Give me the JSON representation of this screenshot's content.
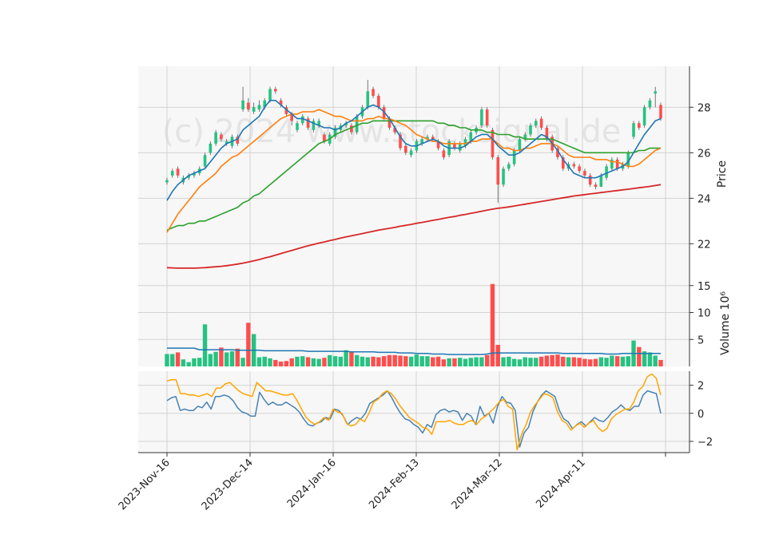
{
  "watermark": "(c) 2024 www.stocksignal.de",
  "colors": {
    "up": "#26c281",
    "down": "#ff4d4d",
    "ma_fast": "#1f77b4",
    "ma_mid": "#ff7f0e",
    "ma_slow": "#2ca02c",
    "ma_long": "#d62728",
    "volume_ma": "#1f77b4",
    "osc_a": "#4682b4",
    "osc_b": "#ffa500",
    "panel_bg": "#f7f7f7",
    "grid": "#d3d3d3"
  },
  "chart_data": [
    {
      "panel": "price",
      "type": "candlestick",
      "ylabel": "Price",
      "ylim": [
        20.4,
        29.8
      ],
      "yticks": [
        "22",
        "24",
        "26",
        "28"
      ],
      "x_tick_labels": [
        "2023-Nov-16",
        "2023-Dec-14",
        "2024-Jan-16",
        "2024-Feb-13",
        "2024-Mar-12",
        "2024-Apr-11"
      ],
      "close": [
        24.8,
        25.2,
        25.0,
        24.9,
        25.0,
        25.1,
        25.3,
        25.9,
        26.4,
        26.9,
        26.6,
        26.5,
        26.7,
        26.4,
        28.3,
        27.9,
        28.0,
        28.1,
        28.3,
        28.8,
        28.7,
        28.1,
        27.7,
        27.4,
        27.3,
        27.6,
        27.1,
        27.4,
        27.4,
        26.5,
        26.8,
        27.1,
        27.2,
        27.3,
        26.9,
        27.6,
        28.0,
        28.7,
        28.5,
        28.0,
        27.5,
        27.1,
        26.9,
        26.2,
        26.0,
        26.1,
        26.5,
        26.6,
        26.7,
        26.6,
        26.2,
        25.8,
        26.5,
        26.2,
        26.4,
        26.6,
        26.9,
        27.1,
        27.9,
        27.2,
        25.8,
        24.6,
        25.3,
        25.5,
        26.1,
        26.6,
        26.8,
        27.2,
        27.4,
        27.1,
        26.6,
        26.1,
        25.8,
        25.3,
        25.5,
        25.4,
        25.2,
        25.0,
        24.6,
        24.5,
        25.0,
        25.4,
        25.7,
        25.3,
        25.5,
        26.0,
        27.3,
        27.1,
        28.0,
        28.3,
        28.7,
        27.5
      ],
      "open": [
        24.7,
        25.0,
        25.3,
        24.7,
        24.9,
        25.0,
        25.1,
        25.4,
        26.0,
        26.4,
        26.8,
        26.4,
        26.3,
        26.7,
        27.9,
        28.2,
        27.8,
        27.9,
        28.0,
        28.3,
        28.8,
        28.3,
        28.0,
        27.7,
        27.0,
        27.3,
        27.5,
        27.0,
        27.2,
        26.8,
        26.4,
        26.7,
        27.0,
        27.2,
        27.2,
        26.9,
        27.6,
        28.0,
        28.8,
        28.5,
        28.0,
        27.5,
        27.1,
        26.8,
        26.3,
        25.9,
        26.1,
        26.4,
        26.6,
        26.7,
        26.5,
        26.1,
        25.9,
        26.4,
        26.1,
        26.3,
        26.5,
        26.9,
        27.2,
        27.9,
        27.0,
        25.8,
        24.6,
        25.3,
        25.5,
        26.1,
        26.6,
        26.8,
        27.2,
        27.5,
        27.1,
        26.7,
        26.2,
        25.8,
        25.3,
        25.5,
        25.4,
        25.2,
        25.0,
        24.6,
        24.5,
        24.9,
        25.3,
        25.7,
        25.3,
        25.4,
        26.7,
        27.3,
        27.2,
        28.0,
        28.6,
        28.1
      ],
      "high": [
        24.9,
        25.3,
        25.4,
        25.0,
        25.1,
        25.2,
        25.4,
        26.0,
        26.5,
        27.0,
        26.9,
        26.6,
        26.8,
        26.8,
        28.9,
        28.4,
        28.2,
        28.3,
        28.4,
        28.9,
        28.9,
        28.4,
        28.1,
        27.8,
        27.4,
        27.7,
        27.6,
        27.5,
        27.5,
        26.9,
        26.9,
        27.2,
        27.3,
        27.4,
        27.3,
        27.7,
        28.1,
        29.2,
        28.9,
        28.6,
        28.1,
        27.6,
        27.2,
        26.9,
        26.4,
        26.2,
        26.6,
        26.7,
        26.8,
        26.8,
        26.6,
        26.2,
        26.6,
        26.5,
        26.5,
        26.7,
        27.0,
        27.2,
        28.0,
        28.0,
        27.1,
        25.9,
        25.4,
        25.6,
        26.2,
        26.7,
        26.9,
        27.3,
        27.5,
        27.6,
        27.2,
        26.8,
        26.3,
        25.9,
        25.6,
        25.6,
        25.5,
        25.3,
        25.1,
        24.7,
        25.1,
        25.5,
        25.8,
        25.8,
        25.6,
        26.1,
        27.4,
        27.4,
        28.1,
        28.4,
        28.9,
        28.2
      ],
      "low": [
        24.6,
        24.9,
        24.9,
        24.6,
        24.8,
        24.9,
        25.0,
        25.3,
        25.9,
        26.3,
        26.5,
        26.3,
        26.2,
        26.3,
        27.8,
        27.8,
        27.7,
        27.8,
        27.9,
        28.2,
        28.6,
        28.0,
        27.6,
        27.2,
        26.9,
        27.2,
        27.0,
        26.9,
        27.1,
        26.4,
        26.3,
        26.6,
        26.9,
        27.1,
        26.8,
        26.8,
        27.5,
        27.9,
        28.4,
        27.9,
        27.4,
        27.0,
        26.8,
        26.1,
        25.9,
        25.8,
        26.0,
        26.3,
        26.5,
        26.5,
        26.1,
        25.7,
        25.8,
        26.1,
        26.0,
        26.2,
        26.4,
        26.8,
        27.1,
        27.1,
        25.7,
        23.8,
        24.5,
        25.2,
        25.4,
        26.0,
        26.5,
        26.7,
        27.1,
        27.0,
        26.5,
        26.0,
        25.7,
        25.2,
        25.2,
        25.3,
        25.1,
        24.9,
        24.5,
        24.4,
        24.5,
        24.8,
        25.2,
        25.2,
        25.2,
        25.3,
        26.6,
        27.0,
        27.1,
        27.9,
        28.0,
        27.4
      ],
      "ma_fast": [
        23.9,
        24.3,
        24.6,
        24.8,
        25.0,
        25.1,
        25.2,
        25.3,
        25.6,
        25.9,
        26.2,
        26.4,
        26.5,
        26.6,
        27.0,
        27.2,
        27.4,
        27.6,
        28.0,
        28.3,
        28.3,
        28.1,
        27.9,
        27.7,
        27.5,
        27.5,
        27.4,
        27.3,
        27.2,
        27.1,
        27.1,
        27.0,
        27.1,
        27.3,
        27.4,
        27.6,
        27.8,
        28.0,
        28.1,
        28.0,
        27.8,
        27.5,
        27.1,
        26.7,
        26.4,
        26.3,
        26.3,
        26.4,
        26.5,
        26.6,
        26.5,
        26.3,
        26.2,
        26.2,
        26.2,
        26.3,
        26.5,
        26.7,
        26.8,
        26.8,
        26.6,
        26.3,
        26.1,
        25.9,
        25.9,
        26.0,
        26.2,
        26.4,
        26.6,
        26.8,
        26.7,
        26.4,
        26.1,
        25.7,
        25.4,
        25.1,
        25.0,
        24.9,
        24.9,
        24.9,
        25.0,
        25.1,
        25.2,
        25.3,
        25.4,
        25.6,
        26.0,
        26.4,
        26.8,
        27.1,
        27.4,
        27.5
      ],
      "ma_mid": [
        22.5,
        22.9,
        23.3,
        23.6,
        23.9,
        24.2,
        24.5,
        24.7,
        24.9,
        25.1,
        25.4,
        25.6,
        25.8,
        25.9,
        26.1,
        26.3,
        26.5,
        26.7,
        26.9,
        27.1,
        27.3,
        27.5,
        27.6,
        27.7,
        27.7,
        27.8,
        27.8,
        27.8,
        27.9,
        27.8,
        27.7,
        27.6,
        27.6,
        27.5,
        27.4,
        27.4,
        27.4,
        27.5,
        27.5,
        27.6,
        27.5,
        27.5,
        27.4,
        27.3,
        27.2,
        27.0,
        26.8,
        26.7,
        26.6,
        26.5,
        26.5,
        26.4,
        26.4,
        26.4,
        26.4,
        26.4,
        26.5,
        26.5,
        26.6,
        26.6,
        26.6,
        26.4,
        26.2,
        26.2,
        26.1,
        26.1,
        26.2,
        26.2,
        26.3,
        26.4,
        26.4,
        26.4,
        26.3,
        26.1,
        25.9,
        25.8,
        25.8,
        25.8,
        25.8,
        25.7,
        25.7,
        25.7,
        25.6,
        25.6,
        25.5,
        25.4,
        25.4,
        25.5,
        25.7,
        25.9,
        26.1,
        26.2
      ],
      "ma_slow": [
        22.6,
        22.7,
        22.8,
        22.8,
        22.9,
        22.9,
        23.0,
        23.0,
        23.1,
        23.2,
        23.3,
        23.4,
        23.5,
        23.6,
        23.8,
        23.9,
        24.1,
        24.2,
        24.4,
        24.6,
        24.8,
        25.0,
        25.2,
        25.4,
        25.6,
        25.8,
        26.0,
        26.2,
        26.4,
        26.5,
        26.6,
        26.8,
        26.9,
        27.0,
        27.1,
        27.2,
        27.3,
        27.3,
        27.4,
        27.4,
        27.4,
        27.4,
        27.4,
        27.4,
        27.4,
        27.4,
        27.4,
        27.4,
        27.4,
        27.4,
        27.3,
        27.3,
        27.2,
        27.2,
        27.1,
        27.1,
        27.0,
        27.0,
        27.0,
        26.9,
        26.9,
        26.8,
        26.8,
        26.8,
        26.7,
        26.7,
        26.6,
        26.6,
        26.6,
        26.6,
        26.6,
        26.6,
        26.5,
        26.4,
        26.3,
        26.2,
        26.1,
        26.0,
        26.0,
        26.0,
        26.0,
        26.0,
        26.0,
        26.0,
        26.0,
        26.0,
        26.0,
        26.1,
        26.1,
        26.2,
        26.2,
        26.2
      ],
      "ma_long": [
        20.95,
        20.94,
        20.93,
        20.93,
        20.93,
        20.93,
        20.94,
        20.95,
        20.97,
        20.99,
        21.01,
        21.04,
        21.07,
        21.11,
        21.15,
        21.2,
        21.25,
        21.31,
        21.37,
        21.43,
        21.5,
        21.57,
        21.64,
        21.71,
        21.78,
        21.85,
        21.91,
        21.97,
        22.03,
        22.08,
        22.14,
        22.19,
        22.25,
        22.3,
        22.35,
        22.4,
        22.45,
        22.5,
        22.55,
        22.6,
        22.64,
        22.68,
        22.72,
        22.77,
        22.81,
        22.85,
        22.9,
        22.94,
        22.98,
        23.03,
        23.07,
        23.12,
        23.16,
        23.2,
        23.25,
        23.29,
        23.34,
        23.38,
        23.43,
        23.48,
        23.52,
        23.56,
        23.59,
        23.62,
        23.66,
        23.7,
        23.74,
        23.78,
        23.82,
        23.86,
        23.9,
        23.94,
        23.98,
        24.02,
        24.06,
        24.1,
        24.13,
        24.16,
        24.19,
        24.22,
        24.25,
        24.28,
        24.31,
        24.34,
        24.37,
        24.4,
        24.43,
        24.46,
        24.49,
        24.52,
        24.56,
        24.6
      ]
    },
    {
      "panel": "volume",
      "type": "bar",
      "ylabel": "Volume  10⁶",
      "ylim": [
        0,
        16
      ],
      "yticks": [
        "5",
        "10",
        "15"
      ],
      "values": [
        2.3,
        2.3,
        2.6,
        1.3,
        0.8,
        1.5,
        1.6,
        7.8,
        2.3,
        2.7,
        3.5,
        2.6,
        2.8,
        3.3,
        1.6,
        8.1,
        6.0,
        1.7,
        1.8,
        1.5,
        1.2,
        0.9,
        1.0,
        1.5,
        1.8,
        1.9,
        1.7,
        1.5,
        1.4,
        1.6,
        2.1,
        1.9,
        1.8,
        3.0,
        2.8,
        2.1,
        1.8,
        1.7,
        1.8,
        1.7,
        1.9,
        2.1,
        2.1,
        2.0,
        1.9,
        1.8,
        2.2,
        1.9,
        1.9,
        1.7,
        1.8,
        1.3,
        1.5,
        1.5,
        1.6,
        1.4,
        1.6,
        1.7,
        1.7,
        2.1,
        15.3,
        4.0,
        1.7,
        1.8,
        1.4,
        1.3,
        1.7,
        1.6,
        1.6,
        1.8,
        2.0,
        2.1,
        2.2,
        1.8,
        1.7,
        1.7,
        1.6,
        1.4,
        1.3,
        1.4,
        1.7,
        1.6,
        2.0,
        1.9,
        1.8,
        1.9,
        4.8,
        3.6,
        2.8,
        2.6,
        2.0,
        1.2
      ],
      "volume_ma": [
        3.4,
        3.4,
        3.4,
        3.4,
        3.4,
        3.4,
        3.1,
        3.1,
        3.1,
        3.1,
        3.1,
        3.1,
        3.1,
        3.0,
        3.0,
        3.0,
        3.0,
        3.0,
        2.9,
        2.9,
        2.9,
        2.9,
        2.9,
        2.9,
        2.9,
        2.9,
        2.8,
        2.8,
        2.8,
        2.8,
        2.8,
        2.8,
        2.8,
        2.8,
        2.7,
        2.7,
        2.7,
        2.7,
        2.7,
        2.6,
        2.6,
        2.6,
        2.6,
        2.5,
        2.5,
        2.5,
        2.4,
        2.4,
        2.4,
        2.3,
        2.3,
        2.3,
        2.2,
        2.2,
        2.2,
        2.2,
        2.2,
        2.2,
        2.2,
        2.3,
        2.5,
        2.5,
        2.5,
        2.5,
        2.5,
        2.5,
        2.5,
        2.5,
        2.5,
        2.5,
        2.5,
        2.5,
        2.5,
        2.4,
        2.4,
        2.4,
        2.4,
        2.4,
        2.4,
        2.4,
        2.4,
        2.3,
        2.3,
        2.3,
        2.4,
        2.4,
        2.4,
        2.4,
        2.4,
        2.4,
        2.4,
        2.4
      ]
    },
    {
      "panel": "oscillator",
      "type": "line",
      "ylim": [
        -2.8,
        3.0
      ],
      "yticks": [
        "−2",
        "0",
        "2"
      ],
      "series": [
        {
          "values": [
            0.9,
            1.1,
            1.2,
            0.2,
            0.3,
            0.2,
            0.2,
            0.5,
            0.4,
            0.8,
            0.3,
            1.2,
            1.2,
            1.3,
            1.2,
            0.9,
            0.4,
            0.1,
            0.0,
            -0.2,
            -0.2,
            1.5,
            1.0,
            0.6,
            0.8,
            0.6,
            0.6,
            0.8,
            0.6,
            0.4,
            0.1,
            -0.4,
            -0.8,
            -0.9,
            -0.7,
            -0.6,
            -0.3,
            -0.4,
            0.3,
            0.2,
            -0.2,
            -0.8,
            -0.5,
            -0.3,
            -0.4,
            0.0,
            0.7,
            0.9,
            1.1,
            1.3,
            1.6,
            1.1,
            0.5,
            0.0,
            -0.4,
            -0.5,
            -0.8,
            -1.0,
            -1.4,
            -0.8,
            -1.0,
            -0.1,
            0.2,
            0.3,
            0.1,
            0.2,
            0.1,
            -0.5,
            0.0,
            -0.2,
            -0.8,
            0.5,
            -0.2,
            0.0,
            -0.7,
            0.5,
            1.2,
            0.8,
            0.7,
            0.2,
            -2.4,
            -1.4,
            -1.0,
            0.1,
            0.8,
            1.3,
            1.6,
            1.4,
            1.2,
            0.2,
            -0.4,
            -0.6,
            -1.1,
            -0.8,
            -0.6,
            -0.9,
            -0.6,
            -0.3,
            -0.5,
            -0.6,
            -0.3,
            0.1,
            0.3,
            0.6,
            0.3,
            0.2,
            0.5,
            0.5,
            1.3,
            1.6,
            1.5,
            1.4,
            0.0
          ]
        },
        {
          "values": [
            2.3,
            2.4,
            2.4,
            1.4,
            1.4,
            1.3,
            1.3,
            1.2,
            1.3,
            1.4,
            1.2,
            1.8,
            1.8,
            2.1,
            2.2,
            1.9,
            1.6,
            1.4,
            1.3,
            1.2,
            2.2,
            1.9,
            1.6,
            1.6,
            1.5,
            1.4,
            1.3,
            1.3,
            1.4,
            0.9,
            0.3,
            -0.3,
            -0.6,
            -0.8,
            -0.6,
            -0.3,
            -0.5,
            0.3,
            0.1,
            0.0,
            -0.7,
            -0.9,
            -0.8,
            -0.4,
            -0.6,
            0.0,
            0.8,
            1.0,
            1.4,
            1.6,
            1.4,
            1.0,
            0.5,
            0.1,
            -0.3,
            -0.5,
            -0.7,
            -1.0,
            -1.1,
            -1.5,
            -0.6,
            -0.6,
            -0.6,
            -0.5,
            -0.7,
            -0.8,
            -0.8,
            -0.6,
            -0.5,
            -0.8,
            -0.4,
            -0.2,
            0.1,
            0.4,
            0.8,
            1.0,
            0.5,
            0.3,
            -2.6,
            -1.5,
            -0.8,
            0.1,
            0.6,
            1.0,
            1.4,
            1.3,
            1.1,
            0.1,
            -0.5,
            -0.7,
            -1.2,
            -0.9,
            -0.7,
            -1.0,
            -0.7,
            -0.5,
            -1.0,
            -1.3,
            -1.1,
            -0.4,
            -0.1,
            0.1,
            0.3,
            0.3,
            0.8,
            1.6,
            1.9,
            2.6,
            2.8,
            2.5,
            1.3
          ]
        }
      ]
    }
  ]
}
